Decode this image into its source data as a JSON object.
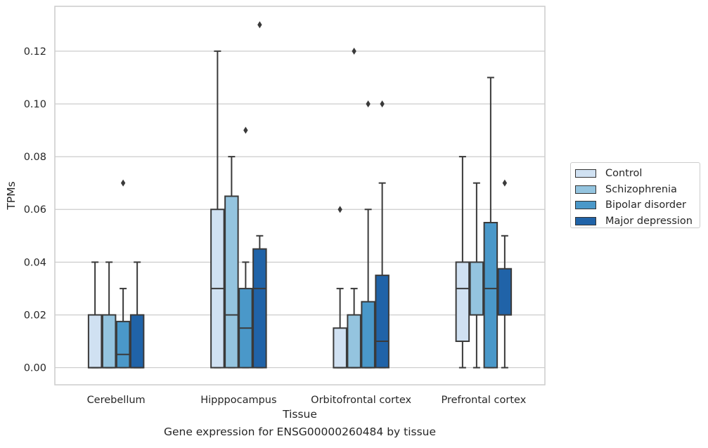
{
  "chart_data": {
    "type": "box",
    "categories": [
      "Cerebellum",
      "Hipppocampus",
      "Orbitofrontal cortex",
      "Prefrontal cortex"
    ],
    "xlabel": "Tissue",
    "ylabel": "TPMs",
    "ylim": [
      -0.0065,
      0.137
    ],
    "yticks": [
      "0.00",
      "0.02",
      "0.04",
      "0.06",
      "0.08",
      "0.10",
      "0.12"
    ],
    "grid": "horizontal",
    "legend_position": "right",
    "series": [
      {
        "name": "Control",
        "color": "#d0e1f2",
        "boxes": [
          {
            "whislo": 0.0,
            "q1": 0.0,
            "median": 0.0,
            "q3": 0.02,
            "whishi": 0.04,
            "fliers": []
          },
          {
            "whislo": 0.0,
            "q1": 0.0,
            "median": 0.03,
            "q3": 0.06,
            "whishi": 0.12,
            "fliers": []
          },
          {
            "whislo": 0.0,
            "q1": 0.0,
            "median": 0.0,
            "q3": 0.015,
            "whishi": 0.03,
            "fliers": [
              0.06
            ]
          },
          {
            "whislo": 0.0,
            "q1": 0.01,
            "median": 0.03,
            "q3": 0.04,
            "whishi": 0.08,
            "fliers": []
          }
        ]
      },
      {
        "name": "Schizophrenia",
        "color": "#94c4df",
        "boxes": [
          {
            "whislo": 0.0,
            "q1": 0.0,
            "median": 0.0,
            "q3": 0.02,
            "whishi": 0.04,
            "fliers": []
          },
          {
            "whislo": 0.0,
            "q1": 0.0,
            "median": 0.02,
            "q3": 0.065,
            "whishi": 0.08,
            "fliers": []
          },
          {
            "whislo": 0.0,
            "q1": 0.0,
            "median": 0.0,
            "q3": 0.02,
            "whishi": 0.03,
            "fliers": [
              0.12
            ]
          },
          {
            "whislo": 0.0,
            "q1": 0.02,
            "median": 0.02,
            "q3": 0.04,
            "whishi": 0.07,
            "fliers": []
          }
        ]
      },
      {
        "name": "Bipolar disorder",
        "color": "#4a98c9",
        "boxes": [
          {
            "whislo": 0.0,
            "q1": 0.0,
            "median": 0.005,
            "q3": 0.0175,
            "whishi": 0.03,
            "fliers": [
              0.07
            ]
          },
          {
            "whislo": 0.0,
            "q1": 0.0,
            "median": 0.015,
            "q3": 0.03,
            "whishi": 0.04,
            "fliers": [
              0.09
            ]
          },
          {
            "whislo": 0.0,
            "q1": 0.0,
            "median": 0.0,
            "q3": 0.025,
            "whishi": 0.06,
            "fliers": [
              0.1
            ]
          },
          {
            "whislo": 0.0,
            "q1": 0.0,
            "median": 0.03,
            "q3": 0.055,
            "whishi": 0.11,
            "fliers": []
          }
        ]
      },
      {
        "name": "Major depression",
        "color": "#2063a8",
        "boxes": [
          {
            "whislo": 0.0,
            "q1": 0.0,
            "median": 0.0,
            "q3": 0.02,
            "whishi": 0.04,
            "fliers": []
          },
          {
            "whislo": 0.0,
            "q1": 0.0,
            "median": 0.03,
            "q3": 0.045,
            "whishi": 0.05,
            "fliers": [
              0.13
            ]
          },
          {
            "whislo": 0.0,
            "q1": 0.0,
            "median": 0.01,
            "q3": 0.035,
            "whishi": 0.07,
            "fliers": [
              0.1
            ]
          },
          {
            "whislo": 0.0,
            "q1": 0.02,
            "median": 0.02,
            "q3": 0.0375,
            "whishi": 0.05,
            "fliers": [
              0.07
            ]
          }
        ]
      }
    ]
  },
  "caption": "Gene expression for ENSG00000260484 by tissue"
}
